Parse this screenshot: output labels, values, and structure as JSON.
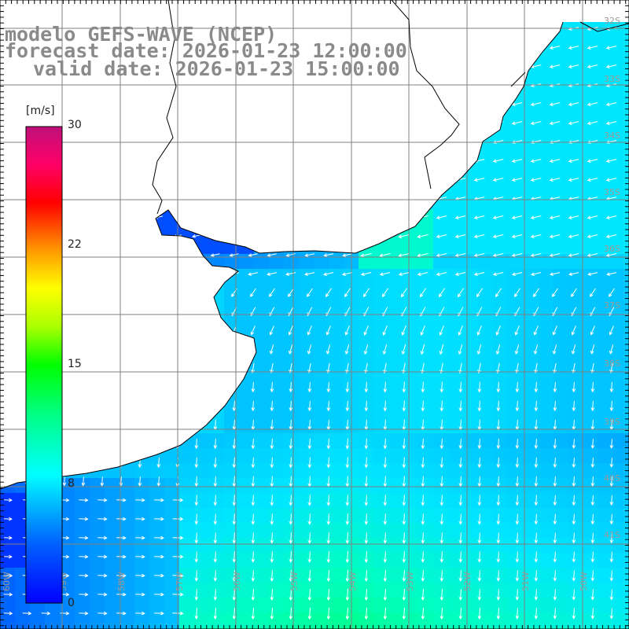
{
  "title": {
    "line1": "modelo GEFS-WAVE (NCEP)",
    "line2": "forecast date: 2026-01-23 12:00:00",
    "line3": "valid date: 2026-01-23 15:00:00"
  },
  "colorbar": {
    "unit": "[m/s]",
    "ticks": [
      "30",
      "22",
      "15",
      "8",
      "0"
    ]
  },
  "lat_labels": [
    "32S",
    "33S",
    "34S",
    "35S",
    "36S",
    "37S",
    "38S",
    "39S",
    "40S",
    "41S"
  ],
  "lon_labels": [
    "60W",
    "59W",
    "58W",
    "57W",
    "56W",
    "55W",
    "54W",
    "53W",
    "52W",
    "51W",
    "50W"
  ],
  "chart_data": {
    "type": "heatmap",
    "title": "modelo GEFS-WAVE (NCEP)",
    "quantity": "wind speed with direction arrows",
    "unit": "[m/s]",
    "colorbar_range": [
      0,
      30
    ],
    "colorbar_ticks": [
      0,
      8,
      15,
      22,
      30
    ],
    "lon_range": [
      -61,
      -50
    ],
    "lat_range": [
      -41.5,
      -31
    ],
    "grid": true,
    "colors": {
      "land": "#ffffff",
      "coast": "#000000",
      "gridline": "#808080",
      "arrows": "#ffffff"
    },
    "regions": [
      {
        "area": "inner Río de la Plata estuary",
        "speed_ms": 2
      },
      {
        "area": "outer Río de la Plata",
        "speed_ms": 4
      },
      {
        "area": "coast off Uruguay (east)",
        "speed_ms": 9
      },
      {
        "area": "open ocean 35S-39S",
        "speed_ms": 7
      },
      {
        "area": "southern shelf near 40S-41S",
        "speed_ms": 10.5
      },
      {
        "area": "Bahía Blanca coast (southwest)",
        "speed_ms": 3
      }
    ],
    "wind_direction": {
      "north_of_36S": "from east-northeast, arrows pointing west-southwest",
      "south_of_37S": "from north, arrows pointing south",
      "southwest_corner": "from west, arrows pointing east"
    }
  }
}
